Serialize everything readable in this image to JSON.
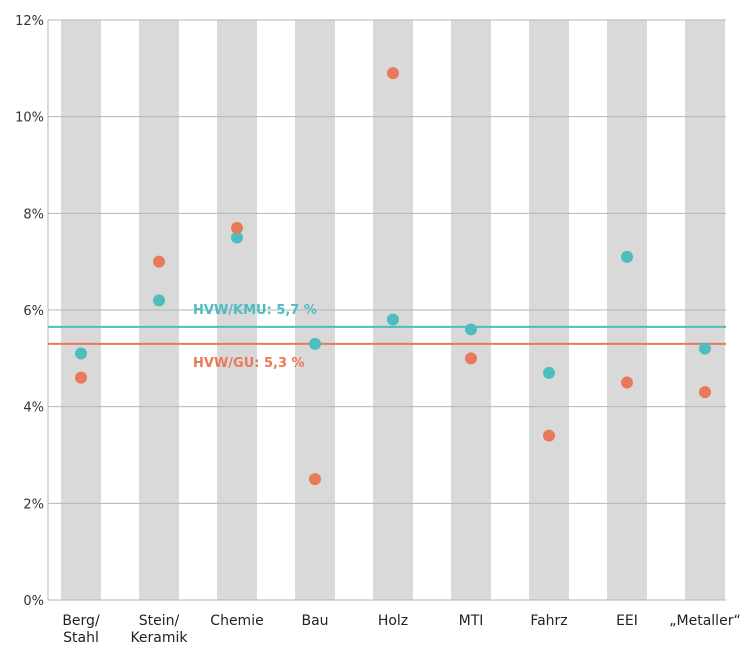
{
  "chart_data": {
    "type": "scatter",
    "categories": [
      [
        "Berg/",
        "Stahl"
      ],
      [
        "Stein/",
        "Keramik"
      ],
      [
        "Chemie"
      ],
      [
        "Bau"
      ],
      [
        "Holz"
      ],
      [
        "MTI"
      ],
      [
        "Fahrz"
      ],
      [
        "EEI"
      ],
      [
        "„Metaller“"
      ]
    ],
    "series": [
      {
        "color": "#4dbdbf",
        "values": [
          5.1,
          6.2,
          7.5,
          5.3,
          5.8,
          5.6,
          4.7,
          7.1,
          5.2
        ]
      },
      {
        "color": "#e8795a",
        "values": [
          4.6,
          7.0,
          7.7,
          2.5,
          10.9,
          5.0,
          3.4,
          4.5,
          4.3
        ]
      }
    ],
    "reference_lines": [
      {
        "label": "HVW/KMU: 5,7 %",
        "value": 5.65,
        "color": "#4dbdbf"
      },
      {
        "label": "HVW/GU: 5,3 %",
        "value": 5.3,
        "color": "#e8795a"
      }
    ],
    "y_ticks": [
      "0%",
      "2%",
      "4%",
      "6%",
      "8%",
      "10%",
      "12%"
    ],
    "ylim": [
      0,
      12
    ],
    "grid": true
  }
}
